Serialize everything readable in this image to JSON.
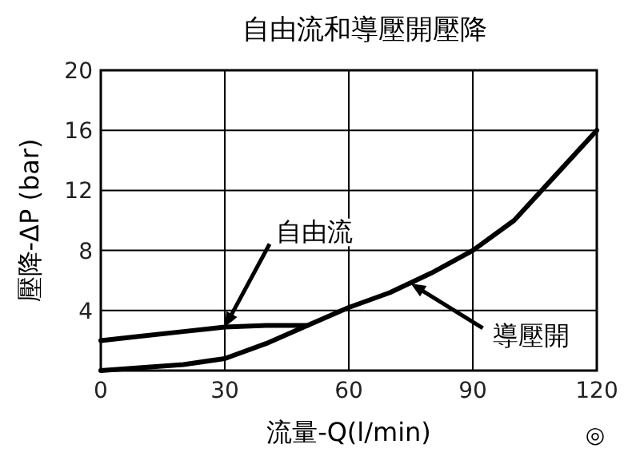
{
  "chart_data": {
    "type": "line",
    "title": "自由流和導壓開壓降",
    "xlabel": "流量-Q(l/min)",
    "ylabel": "壓降-ΔP (bar)",
    "xlim": [
      0,
      120
    ],
    "xticks": [
      0,
      30,
      60,
      90,
      120
    ],
    "ylim": [
      0,
      20
    ],
    "yticks": [
      4,
      8,
      12,
      16,
      20
    ],
    "grid": true,
    "series": [
      {
        "name": "自由流",
        "color": "#000000",
        "x": [
          0,
          10,
          20,
          30,
          40,
          50
        ],
        "values": [
          2,
          2.3,
          2.6,
          2.9,
          3,
          3
        ]
      },
      {
        "name": "導壓開",
        "color": "#000000",
        "x": [
          0,
          10,
          20,
          30,
          40,
          50,
          60,
          70,
          80,
          90,
          100,
          110,
          120
        ],
        "values": [
          0,
          0.2,
          0.4,
          0.8,
          1.8,
          3,
          4.2,
          5.2,
          6.5,
          8,
          10,
          13,
          16
        ]
      }
    ],
    "annotations": [
      "◎"
    ]
  }
}
